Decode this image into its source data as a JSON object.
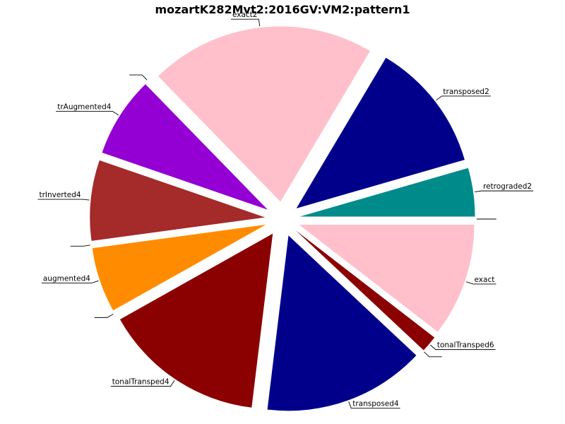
{
  "chart_data": {
    "type": "pie",
    "title": "mozartK282Mvt2:2016GV:VM2:pattern1",
    "slices": [
      {
        "label": "retrograded2",
        "value": 5.0,
        "color": "#008b8b"
      },
      {
        "label": "transposed2",
        "value": 13.4,
        "color": "#00008b"
      },
      {
        "label": "exact2",
        "value": 23.3,
        "color": "#ffc0cb"
      },
      {
        "label": "",
        "value": 0.0,
        "color": "#ffffff"
      },
      {
        "label": "trAugmented4",
        "value": 8.3,
        "color": "#9400d3"
      },
      {
        "label": "trInverted4",
        "value": 8.3,
        "color": "#a52a2a"
      },
      {
        "label": "",
        "value": 0.0,
        "color": "#ffffff"
      },
      {
        "label": "augmented4",
        "value": 6.7,
        "color": "#ff8c00"
      },
      {
        "label": "",
        "value": 0.0,
        "color": "#ffffff"
      },
      {
        "label": "tonalTransped4",
        "value": 16.7,
        "color": "#8b0000"
      },
      {
        "label": "transposed4",
        "value": 16.7,
        "color": "#00008b"
      },
      {
        "label": "",
        "value": 0.0,
        "color": "#ffffff"
      },
      {
        "label": "tonalTransped6",
        "value": 1.7,
        "color": "#8b0000"
      },
      {
        "label": "exact",
        "value": 11.7,
        "color": "#ffc0cb"
      },
      {
        "label": "",
        "value": 0.0,
        "color": "#ffffff"
      }
    ],
    "start_angle_deg": 0,
    "direction": "counterclockwise",
    "exploded": true,
    "legend": "none"
  }
}
